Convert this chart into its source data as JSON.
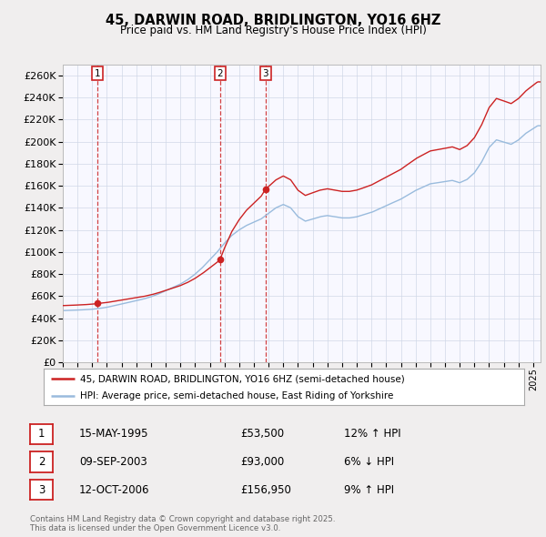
{
  "title": "45, DARWIN ROAD, BRIDLINGTON, YO16 6HZ",
  "subtitle": "Price paid vs. HM Land Registry's House Price Index (HPI)",
  "ylim": [
    0,
    270000
  ],
  "yticks": [
    0,
    20000,
    40000,
    60000,
    80000,
    100000,
    120000,
    140000,
    160000,
    180000,
    200000,
    220000,
    240000,
    260000
  ],
  "xlim_start": 1993.0,
  "xlim_end": 2025.5,
  "sale_dates_num": [
    1995.37,
    2003.69,
    2006.79
  ],
  "sale_prices": [
    53500,
    93000,
    156950
  ],
  "sale_labels": [
    "1",
    "2",
    "3"
  ],
  "red_line_color": "#cc2222",
  "blue_line_color": "#99bbdd",
  "grid_color": "#d0d8e8",
  "background_color": "#f0eeee",
  "plot_bg_color": "#f8f8ff",
  "legend_red_label": "45, DARWIN ROAD, BRIDLINGTON, YO16 6HZ (semi-detached house)",
  "legend_blue_label": "HPI: Average price, semi-detached house, East Riding of Yorkshire",
  "table_rows": [
    [
      "1",
      "15-MAY-1995",
      "£53,500",
      "12% ↑ HPI"
    ],
    [
      "2",
      "09-SEP-2003",
      "£93,000",
      "6% ↓ HPI"
    ],
    [
      "3",
      "12-OCT-2006",
      "£156,950",
      "9% ↑ HPI"
    ]
  ],
  "footer": "Contains HM Land Registry data © Crown copyright and database right 2025.\nThis data is licensed under the Open Government Licence v3.0."
}
